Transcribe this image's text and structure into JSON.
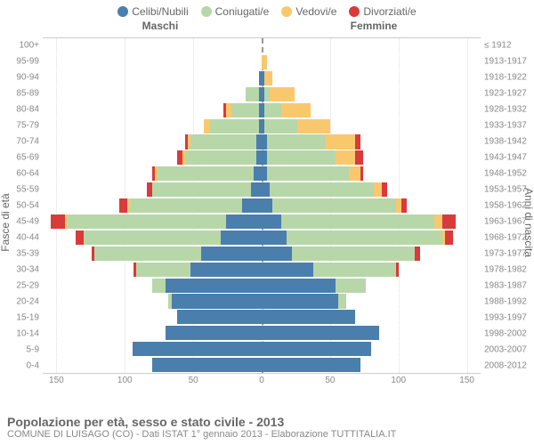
{
  "chart": {
    "type": "population-pyramid",
    "background_color": "#ffffff",
    "grid_color": "#eeeeee",
    "center_line_color": "#999999",
    "text_color": "#666666",
    "tick_color": "#888888",
    "font_family": "Arial",
    "title_fontsize": 14,
    "sub_fontsize": 11,
    "label_fontsize": 12,
    "tick_fontsize": 10,
    "legend": [
      {
        "label": "Celibi/Nubili",
        "color": "#4a7ead"
      },
      {
        "label": "Coniugati/e",
        "color": "#b7d7a8"
      },
      {
        "label": "Vedovi/e",
        "color": "#f9c86d"
      },
      {
        "label": "Divorziati/e",
        "color": "#d93a3a"
      }
    ],
    "headers": {
      "male": "Maschi",
      "female": "Femmine"
    },
    "y_label_left": "Fasce di età",
    "y_label_right": "Anni di nascita",
    "x_max": 160,
    "x_ticks": [
      150,
      100,
      50,
      0,
      50,
      100,
      150
    ],
    "title": "Popolazione per età, sesso e stato civile - 2013",
    "subtitle": "COMUNE DI LUISAGO (CO) - Dati ISTAT 1° gennaio 2013 - Elaborazione TUTTITALIA.IT",
    "rows": [
      {
        "age": "100+",
        "birth": "≤ 1912",
        "m": {
          "cel": 0,
          "con": 0,
          "ved": 0,
          "div": 0
        },
        "f": {
          "cel": 0,
          "con": 0,
          "ved": 0,
          "div": 0
        }
      },
      {
        "age": "95-99",
        "birth": "1913-1917",
        "m": {
          "cel": 0,
          "con": 0,
          "ved": 0,
          "div": 0
        },
        "f": {
          "cel": 0,
          "con": 0,
          "ved": 4,
          "div": 0
        }
      },
      {
        "age": "90-94",
        "birth": "1918-1922",
        "m": {
          "cel": 2,
          "con": 0,
          "ved": 0,
          "div": 0
        },
        "f": {
          "cel": 2,
          "con": 0,
          "ved": 6,
          "div": 0
        }
      },
      {
        "age": "85-89",
        "birth": "1923-1927",
        "m": {
          "cel": 2,
          "con": 10,
          "ved": 0,
          "div": 0
        },
        "f": {
          "cel": 2,
          "con": 4,
          "ved": 18,
          "div": 0
        }
      },
      {
        "age": "80-84",
        "birth": "1928-1932",
        "m": {
          "cel": 2,
          "con": 20,
          "ved": 4,
          "div": 2
        },
        "f": {
          "cel": 2,
          "con": 12,
          "ved": 22,
          "div": 0
        }
      },
      {
        "age": "75-79",
        "birth": "1933-1937",
        "m": {
          "cel": 2,
          "con": 36,
          "ved": 4,
          "div": 0
        },
        "f": {
          "cel": 2,
          "con": 24,
          "ved": 24,
          "div": 0
        }
      },
      {
        "age": "70-74",
        "birth": "1938-1942",
        "m": {
          "cel": 4,
          "con": 48,
          "ved": 2,
          "div": 2
        },
        "f": {
          "cel": 4,
          "con": 42,
          "ved": 22,
          "div": 4
        }
      },
      {
        "age": "65-69",
        "birth": "1943-1947",
        "m": {
          "cel": 4,
          "con": 52,
          "ved": 2,
          "div": 4
        },
        "f": {
          "cel": 4,
          "con": 50,
          "ved": 14,
          "div": 6
        }
      },
      {
        "age": "60-64",
        "birth": "1948-1952",
        "m": {
          "cel": 6,
          "con": 70,
          "ved": 2,
          "div": 2
        },
        "f": {
          "cel": 4,
          "con": 60,
          "ved": 8,
          "div": 2
        }
      },
      {
        "age": "55-59",
        "birth": "1953-1957",
        "m": {
          "cel": 8,
          "con": 72,
          "ved": 0,
          "div": 4
        },
        "f": {
          "cel": 6,
          "con": 76,
          "ved": 6,
          "div": 4
        }
      },
      {
        "age": "50-54",
        "birth": "1958-1962",
        "m": {
          "cel": 14,
          "con": 82,
          "ved": 2,
          "div": 6
        },
        "f": {
          "cel": 8,
          "con": 90,
          "ved": 4,
          "div": 4
        }
      },
      {
        "age": "45-49",
        "birth": "1963-1967",
        "m": {
          "cel": 26,
          "con": 116,
          "ved": 2,
          "div": 10
        },
        "f": {
          "cel": 14,
          "con": 112,
          "ved": 6,
          "div": 10
        }
      },
      {
        "age": "40-44",
        "birth": "1968-1972",
        "m": {
          "cel": 30,
          "con": 100,
          "ved": 0,
          "div": 6
        },
        "f": {
          "cel": 18,
          "con": 114,
          "ved": 2,
          "div": 6
        }
      },
      {
        "age": "35-39",
        "birth": "1973-1977",
        "m": {
          "cel": 44,
          "con": 78,
          "ved": 0,
          "div": 2
        },
        "f": {
          "cel": 22,
          "con": 90,
          "ved": 0,
          "div": 4
        }
      },
      {
        "age": "30-34",
        "birth": "1978-1982",
        "m": {
          "cel": 52,
          "con": 40,
          "ved": 0,
          "div": 2
        },
        "f": {
          "cel": 38,
          "con": 60,
          "ved": 0,
          "div": 2
        }
      },
      {
        "age": "25-29",
        "birth": "1983-1987",
        "m": {
          "cel": 70,
          "con": 10,
          "ved": 0,
          "div": 0
        },
        "f": {
          "cel": 54,
          "con": 22,
          "ved": 0,
          "div": 0
        }
      },
      {
        "age": "20-24",
        "birth": "1988-1992",
        "m": {
          "cel": 66,
          "con": 2,
          "ved": 0,
          "div": 0
        },
        "f": {
          "cel": 56,
          "con": 6,
          "ved": 0,
          "div": 0
        }
      },
      {
        "age": "15-19",
        "birth": "1993-1997",
        "m": {
          "cel": 62,
          "con": 0,
          "ved": 0,
          "div": 0
        },
        "f": {
          "cel": 68,
          "con": 0,
          "ved": 0,
          "div": 0
        }
      },
      {
        "age": "10-14",
        "birth": "1998-2002",
        "m": {
          "cel": 70,
          "con": 0,
          "ved": 0,
          "div": 0
        },
        "f": {
          "cel": 86,
          "con": 0,
          "ved": 0,
          "div": 0
        }
      },
      {
        "age": "5-9",
        "birth": "2003-2007",
        "m": {
          "cel": 94,
          "con": 0,
          "ved": 0,
          "div": 0
        },
        "f": {
          "cel": 80,
          "con": 0,
          "ved": 0,
          "div": 0
        }
      },
      {
        "age": "0-4",
        "birth": "2008-2012",
        "m": {
          "cel": 80,
          "con": 0,
          "ved": 0,
          "div": 0
        },
        "f": {
          "cel": 72,
          "con": 0,
          "ved": 0,
          "div": 0
        }
      }
    ]
  }
}
